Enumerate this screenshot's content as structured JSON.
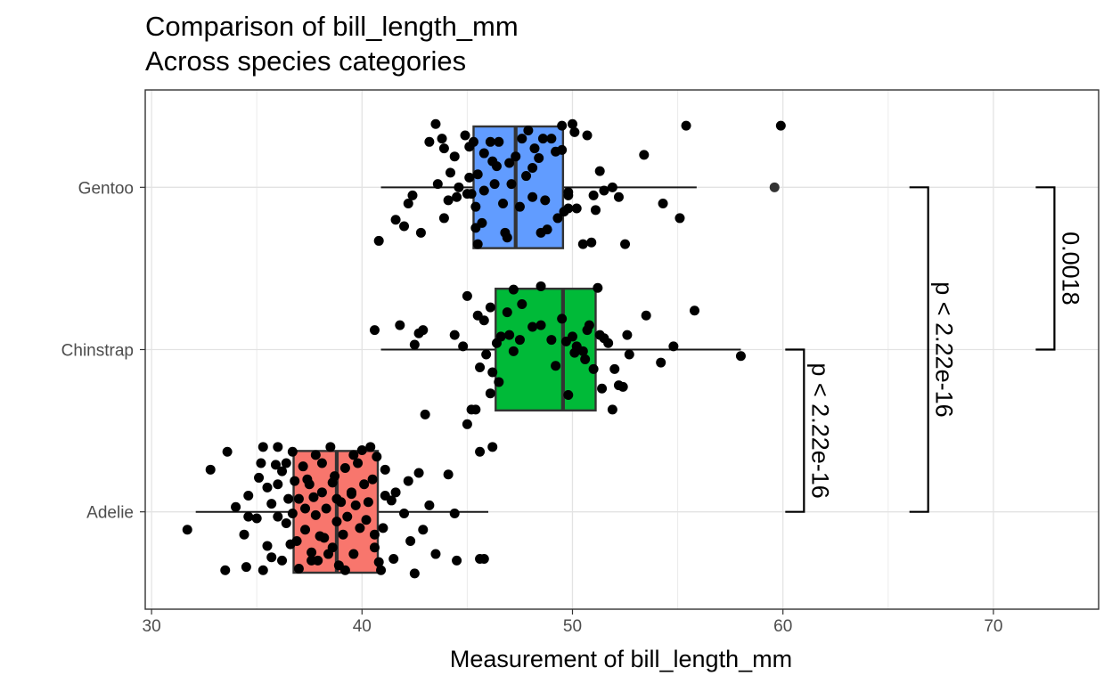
{
  "chart_data": {
    "type": "boxplot",
    "orientation": "horizontal",
    "title": "Comparison of bill_length_mm",
    "subtitle": "Across species categories",
    "xlabel": "Measurement of bill_length_mm",
    "ylabel": "",
    "xlim": [
      29.7,
      75.0
    ],
    "x_ticks": [
      30,
      40,
      50,
      60,
      70
    ],
    "categories": [
      "Adelie",
      "Chinstrap",
      "Gentoo"
    ],
    "grid": true,
    "legend": "none",
    "series": [
      {
        "category": "Adelie",
        "color": "#F8766D",
        "min": 32.1,
        "q1": 36.75,
        "median": 38.8,
        "q3": 40.75,
        "max": 46.0,
        "outliers": [],
        "points": [
          [
            31.7,
            -0.11
          ],
          [
            32.8,
            0.26
          ],
          [
            33.5,
            -0.36
          ],
          [
            33.6,
            0.37
          ],
          [
            34.0,
            0.03
          ],
          [
            34.4,
            -0.14
          ],
          [
            34.5,
            -0.34
          ],
          [
            34.6,
            0.1
          ],
          [
            34.6,
            -0.03
          ],
          [
            35.0,
            -0.04
          ],
          [
            35.1,
            0.21
          ],
          [
            35.3,
            0.4
          ],
          [
            35.3,
            -0.36
          ],
          [
            35.5,
            -0.21
          ],
          [
            35.5,
            0.15
          ],
          [
            35.7,
            0.05
          ],
          [
            35.7,
            -0.28
          ],
          [
            35.9,
            0.29
          ],
          [
            36.0,
            -0.03
          ],
          [
            36.0,
            0.17
          ],
          [
            36.2,
            -0.3
          ],
          [
            36.2,
            0.25
          ],
          [
            36.4,
            0.3
          ],
          [
            36.4,
            -0.07
          ],
          [
            36.5,
            0.08
          ],
          [
            36.6,
            -0.2
          ],
          [
            36.7,
            0.37
          ],
          [
            36.7,
            -0.01
          ],
          [
            36.8,
            0.19
          ],
          [
            36.9,
            -0.18
          ],
          [
            37.0,
            0.08
          ],
          [
            37.0,
            -0.35
          ],
          [
            37.2,
            0.28
          ],
          [
            37.3,
            -0.11
          ],
          [
            37.3,
            0.02
          ],
          [
            37.5,
            0.17
          ],
          [
            37.6,
            -0.25
          ],
          [
            37.7,
            0.09
          ],
          [
            37.8,
            -0.02
          ],
          [
            37.8,
            0.35
          ],
          [
            37.9,
            -0.3
          ],
          [
            38.1,
            0.12
          ],
          [
            38.1,
            0.3
          ],
          [
            38.2,
            -0.16
          ],
          [
            38.3,
            0.02
          ],
          [
            38.5,
            0.4
          ],
          [
            38.6,
            -0.22
          ],
          [
            38.6,
            0.18
          ],
          [
            38.7,
            0.22
          ],
          [
            38.8,
            -0.06
          ],
          [
            38.8,
            0.08
          ],
          [
            38.9,
            -0.33
          ],
          [
            39.0,
            0.06
          ],
          [
            39.1,
            -0.14
          ],
          [
            39.2,
            0.27
          ],
          [
            39.3,
            -0.03
          ],
          [
            39.5,
            0.12
          ],
          [
            39.6,
            -0.26
          ],
          [
            39.6,
            0.35
          ],
          [
            39.7,
            0.04
          ],
          [
            39.8,
            0.3
          ],
          [
            39.9,
            -0.1
          ],
          [
            40.0,
            0.38
          ],
          [
            40.1,
            0.17
          ],
          [
            40.2,
            -0.05
          ],
          [
            40.3,
            0.06
          ],
          [
            40.5,
            0.2
          ],
          [
            40.6,
            -0.14
          ],
          [
            40.7,
            0.34
          ],
          [
            40.8,
            -0.31
          ],
          [
            40.9,
            -0.36
          ],
          [
            41.1,
            0.1
          ],
          [
            41.1,
            0.26
          ],
          [
            41.4,
            0.07
          ],
          [
            41.5,
            -0.29
          ],
          [
            41.6,
            0.12
          ],
          [
            42.0,
            -0.01
          ],
          [
            42.2,
            0.19
          ],
          [
            42.3,
            -0.18
          ],
          [
            42.5,
            -0.38
          ],
          [
            42.7,
            0.24
          ],
          [
            42.9,
            -0.11
          ],
          [
            43.2,
            0.04
          ],
          [
            43.5,
            -0.26
          ],
          [
            44.1,
            0.23
          ],
          [
            44.5,
            -0.3
          ],
          [
            44.4,
            -0.01
          ],
          [
            45.8,
            -0.29
          ],
          [
            45.6,
            -0.29
          ],
          [
            38.4,
            -0.26
          ],
          [
            39.2,
            -0.36
          ],
          [
            37.6,
            -0.3
          ],
          [
            36.0,
            0.4
          ],
          [
            35.2,
            0.3
          ],
          [
            40.4,
            0.4
          ],
          [
            41.0,
            -0.1
          ],
          [
            39.5,
            0.11
          ],
          [
            38.0,
            -0.15
          ],
          [
            37.4,
            0.2
          ],
          [
            40.6,
            -0.22
          ]
        ]
      },
      {
        "category": "Chinstrap",
        "color": "#00BA38",
        "min": 40.9,
        "q1": 46.35,
        "median": 49.55,
        "q3": 51.1,
        "max": 58.0,
        "outliers": [],
        "points": [
          [
            40.6,
            0.12
          ],
          [
            41.8,
            0.15
          ],
          [
            42.5,
            0.03
          ],
          [
            42.7,
            0.1
          ],
          [
            42.9,
            0.12
          ],
          [
            43.0,
            -0.4
          ],
          [
            44.4,
            0.09
          ],
          [
            44.8,
            0.02
          ],
          [
            45.0,
            -0.46
          ],
          [
            45.2,
            -0.37
          ],
          [
            45.4,
            -0.37
          ],
          [
            45.5,
            0.21
          ],
          [
            45.6,
            -0.11
          ],
          [
            45.8,
            0.18
          ],
          [
            45.9,
            -0.03
          ],
          [
            46.1,
            0.26
          ],
          [
            46.1,
            -0.27
          ],
          [
            46.2,
            -0.14
          ],
          [
            46.4,
            0.04
          ],
          [
            46.5,
            -0.2
          ],
          [
            46.6,
            0.08
          ],
          [
            46.9,
            0.23
          ],
          [
            47.0,
            0.09
          ],
          [
            47.2,
            -0.01
          ],
          [
            47.5,
            0.06
          ],
          [
            47.6,
            0.28
          ],
          [
            48.1,
            0.14
          ],
          [
            48.5,
            0.15
          ],
          [
            49.0,
            0.06
          ],
          [
            49.2,
            -0.1
          ],
          [
            49.5,
            0.19
          ],
          [
            49.7,
            0.05
          ],
          [
            49.8,
            -0.28
          ],
          [
            50.0,
            0.08
          ],
          [
            50.2,
            0.02
          ],
          [
            50.5,
            -0.01
          ],
          [
            50.6,
            -0.06
          ],
          [
            50.7,
            0.12
          ],
          [
            50.8,
            0.15
          ],
          [
            51.0,
            -0.12
          ],
          [
            51.3,
            0.09
          ],
          [
            51.4,
            -0.24
          ],
          [
            51.5,
            0.07
          ],
          [
            51.7,
            0.04
          ],
          [
            52.0,
            -0.12
          ],
          [
            52.2,
            -0.22
          ],
          [
            52.4,
            -0.23
          ],
          [
            52.6,
            0.09
          ],
          [
            52.7,
            -0.03
          ],
          [
            53.5,
            0.21
          ],
          [
            54.2,
            -0.08
          ],
          [
            54.8,
            0.02
          ],
          [
            55.8,
            0.24
          ],
          [
            58.0,
            -0.04
          ],
          [
            46.2,
            -0.6
          ],
          [
            45.6,
            -0.63
          ],
          [
            51.9,
            -0.37
          ],
          [
            45.0,
            0.33
          ],
          [
            47.2,
            0.37
          ],
          [
            51.2,
            0.38
          ],
          [
            48.5,
            0.39
          ],
          [
            50.1,
            -0.02
          ]
        ]
      },
      {
        "category": "Gentoo",
        "color": "#619CFF",
        "min": 40.9,
        "q1": 45.3,
        "median": 47.3,
        "q3": 49.55,
        "max": 55.9,
        "outliers": [
          59.6
        ],
        "points": [
          [
            40.8,
            -0.33
          ],
          [
            41.6,
            -0.2
          ],
          [
            42.0,
            -0.24
          ],
          [
            42.2,
            -0.1
          ],
          [
            42.4,
            -0.05
          ],
          [
            42.8,
            -0.28
          ],
          [
            43.2,
            0.28
          ],
          [
            43.5,
            0.39
          ],
          [
            43.6,
            0.02
          ],
          [
            43.8,
            0.3
          ],
          [
            43.9,
            -0.19
          ],
          [
            44.2,
            0.09
          ],
          [
            44.4,
            0.19
          ],
          [
            44.5,
            -0.06
          ],
          [
            44.9,
            0.32
          ],
          [
            45.0,
            -0.04
          ],
          [
            45.1,
            0.25
          ],
          [
            45.2,
            -0.04
          ],
          [
            45.3,
            0.28
          ],
          [
            45.4,
            -0.12
          ],
          [
            45.5,
            0.08
          ],
          [
            45.5,
            -0.35
          ],
          [
            45.7,
            -0.22
          ],
          [
            45.8,
            -0.02
          ],
          [
            46.1,
            0.28
          ],
          [
            46.2,
            0.16
          ],
          [
            46.4,
            0.13
          ],
          [
            46.5,
            0.28
          ],
          [
            46.8,
            -0.28
          ],
          [
            47.0,
            0.15
          ],
          [
            47.3,
            0.19
          ],
          [
            47.5,
            -0.12
          ],
          [
            47.6,
            0.3
          ],
          [
            47.8,
            0.07
          ],
          [
            48.1,
            -0.06
          ],
          [
            48.2,
            0.24
          ],
          [
            48.4,
            0.18
          ],
          [
            48.5,
            -0.28
          ],
          [
            48.6,
            0.3
          ],
          [
            48.8,
            -0.26
          ],
          [
            49.0,
            0.3
          ],
          [
            49.2,
            0.22
          ],
          [
            49.3,
            -0.19
          ],
          [
            49.5,
            0.23
          ],
          [
            49.6,
            -0.15
          ],
          [
            49.8,
            -0.03
          ],
          [
            50.0,
            0.39
          ],
          [
            50.2,
            -0.13
          ],
          [
            50.5,
            -0.35
          ],
          [
            50.7,
            0.32
          ],
          [
            50.9,
            -0.34
          ],
          [
            51.1,
            -0.14
          ],
          [
            51.3,
            0.1
          ],
          [
            51.5,
            -0.02
          ],
          [
            51.9,
            0.0
          ],
          [
            52.2,
            -0.06
          ],
          [
            52.5,
            -0.35
          ],
          [
            53.4,
            0.2
          ],
          [
            54.3,
            -0.1
          ],
          [
            55.1,
            -0.19
          ],
          [
            55.4,
            0.38
          ],
          [
            59.9,
            0.38
          ],
          [
            44.1,
            -0.08
          ],
          [
            45.1,
            0.06
          ],
          [
            46.9,
            -0.31
          ],
          [
            45.8,
            0.21
          ],
          [
            47.1,
            0.02
          ],
          [
            48.7,
            -0.08
          ],
          [
            49.5,
            0.38
          ],
          [
            51.0,
            -0.05
          ],
          [
            49.8,
            -0.05
          ],
          [
            49.8,
            -0.13
          ],
          [
            45.4,
            -0.25
          ],
          [
            43.9,
            0.24
          ],
          [
            44.6,
            0.0
          ],
          [
            50.1,
            0.34
          ],
          [
            48.1,
            0.12
          ],
          [
            46.7,
            -0.1
          ],
          [
            47.9,
            0.35
          ],
          [
            46.3,
            0.02
          ]
        ]
      }
    ],
    "comparisons": [
      {
        "group1": "Adelie",
        "group2": "Chinstrap",
        "label": "p < 2.22e-16",
        "x": 61.0
      },
      {
        "group1": "Adelie",
        "group2": "Gentoo",
        "label": "p < 2.22e-16",
        "x": 66.9
      },
      {
        "group1": "Chinstrap",
        "group2": "Gentoo",
        "label": "0.0018",
        "x": 72.9
      }
    ]
  }
}
